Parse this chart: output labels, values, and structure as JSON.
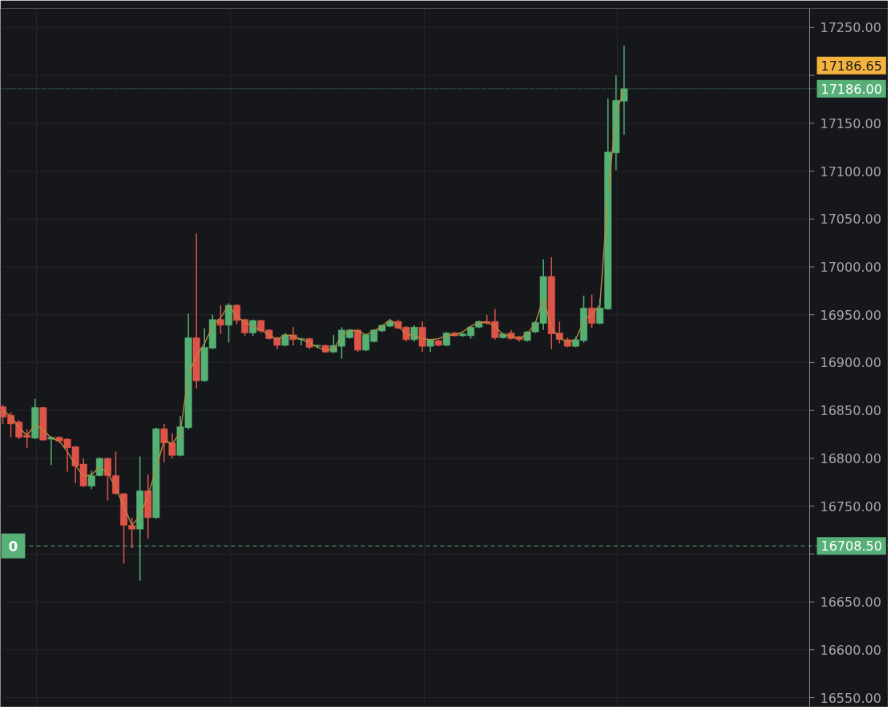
{
  "chart_data": {
    "type": "candlestick",
    "categories": [
      null,
      null,
      null,
      null,
      null,
      null,
      null,
      null,
      null,
      null,
      null,
      null,
      null,
      null,
      null,
      null,
      null,
      null,
      null,
      null,
      null,
      null,
      null,
      null,
      null,
      null,
      null,
      null,
      null,
      null,
      null,
      null,
      null,
      null,
      null,
      null,
      null,
      null,
      null,
      null,
      null,
      null,
      null,
      null,
      null,
      null,
      null,
      null,
      null,
      null,
      null,
      null,
      null,
      null,
      null,
      null,
      null,
      null,
      null,
      null,
      null,
      null,
      null,
      null,
      null,
      null,
      null,
      null,
      null,
      null,
      null,
      null,
      null,
      null,
      null,
      null,
      null,
      null
    ],
    "ohlc": [
      [
        16854,
        16856,
        16836,
        16843
      ],
      [
        16845,
        16848,
        16822,
        16836
      ],
      [
        16838,
        16840,
        16820,
        16822
      ],
      [
        16824,
        16830,
        16811,
        16822
      ],
      [
        16821,
        16862,
        16820,
        16853
      ],
      [
        16853,
        16854,
        16819,
        16819
      ],
      [
        16820,
        16823,
        16793,
        16822
      ],
      [
        16822,
        16823,
        16816,
        16818
      ],
      [
        16820,
        16821,
        16786,
        16811
      ],
      [
        16812,
        16813,
        16774,
        16792
      ],
      [
        16794,
        16800,
        16770,
        16771
      ],
      [
        16771,
        16787,
        16768,
        16782
      ],
      [
        16782,
        16801,
        16781,
        16800
      ],
      [
        16800,
        16801,
        16756,
        16782
      ],
      [
        16782,
        16807,
        16762,
        16763
      ],
      [
        16763,
        16764,
        16690,
        16730
      ],
      [
        16730,
        16738,
        16706,
        16726
      ],
      [
        16726,
        16802,
        16672,
        16766
      ],
      [
        16766,
        16783,
        16716,
        16738
      ],
      [
        16738,
        16832,
        16737,
        16831
      ],
      [
        16831,
        16836,
        16796,
        16816
      ],
      [
        16816,
        16826,
        16800,
        16803
      ],
      [
        16803,
        16844,
        16802,
        16833
      ],
      [
        16832,
        16951,
        16830,
        16926
      ],
      [
        16926,
        17035,
        16873,
        16881
      ],
      [
        16881,
        16936,
        16880,
        16916
      ],
      [
        16915,
        16950,
        16914,
        16945
      ],
      [
        16945,
        16960,
        16930,
        16939
      ],
      [
        16939,
        16962,
        16921,
        16960
      ],
      [
        16960,
        16961,
        16940,
        16944
      ],
      [
        16945,
        16946,
        16928,
        16931
      ],
      [
        16931,
        16945,
        16928,
        16944
      ],
      [
        16944,
        16945,
        16931,
        16933
      ],
      [
        16934,
        16935,
        16924,
        16925
      ],
      [
        16926,
        16927,
        16914,
        16918
      ],
      [
        16918,
        16931,
        16917,
        16929
      ],
      [
        16929,
        16937,
        16918,
        16924
      ],
      [
        16924,
        16926,
        16918,
        16925
      ],
      [
        16925,
        16926,
        16914,
        16916
      ],
      [
        16917,
        16919,
        16915,
        16918
      ],
      [
        16918,
        16919,
        16910,
        16911
      ],
      [
        16911,
        16929,
        16910,
        16918
      ],
      [
        16917,
        16937,
        16904,
        16934
      ],
      [
        16926,
        16935,
        16925,
        16934
      ],
      [
        16934,
        16935,
        16911,
        16913
      ],
      [
        16913,
        16930,
        16912,
        16929
      ],
      [
        16922,
        16935,
        16921,
        16934
      ],
      [
        16933,
        16940,
        16932,
        16939
      ],
      [
        16938,
        16944,
        16937,
        16943
      ],
      [
        16943,
        16945,
        16935,
        16936
      ],
      [
        16937,
        16938,
        16922,
        16924
      ],
      [
        16924,
        16939,
        16922,
        16937
      ],
      [
        16937,
        16943,
        16911,
        16917
      ],
      [
        16917,
        16924,
        16911,
        16924
      ],
      [
        16923,
        16924,
        16917,
        16918
      ],
      [
        16918,
        16932,
        16917,
        16931
      ],
      [
        16931,
        16932,
        16927,
        16928
      ],
      [
        16928,
        16931,
        16927,
        16930
      ],
      [
        16928,
        16938,
        16925,
        16937
      ],
      [
        16937,
        16944,
        16936,
        16943
      ],
      [
        16943,
        16950,
        16940,
        16941
      ],
      [
        16943,
        16956,
        16924,
        16926
      ],
      [
        16926,
        16931,
        16925,
        16930
      ],
      [
        16931,
        16934,
        16924,
        16925
      ],
      [
        16927,
        16928,
        16922,
        16924
      ],
      [
        16923,
        16933,
        16922,
        16932
      ],
      [
        16932,
        16943,
        16931,
        16942
      ],
      [
        16941,
        17008,
        16934,
        16990
      ],
      [
        16990,
        17010,
        16914,
        16930
      ],
      [
        16931,
        16943,
        16920,
        16924
      ],
      [
        16924,
        16926,
        16916,
        16917
      ],
      [
        16917,
        16927,
        16916,
        16924
      ],
      [
        16923,
        16970,
        16921,
        16957
      ],
      [
        16957,
        16971,
        16936,
        16941
      ],
      [
        16941,
        16967,
        16940,
        16957
      ],
      [
        16956,
        17176,
        16955,
        17120
      ],
      [
        17119,
        17200,
        17101,
        17174
      ],
      [
        17173,
        17231,
        17138,
        17186
      ]
    ],
    "colors": [
      "#df5448",
      "#df5448",
      "#df5448",
      "#df5448",
      "#55b073",
      "#df5448",
      "#55b073",
      "#df5448",
      "#df5448",
      "#df5448",
      "#df5448",
      "#55b073",
      "#55b073",
      "#df5448",
      "#df5448",
      "#df5448",
      "#df5448",
      "#55b073",
      "#df5448",
      "#55b073",
      "#df5448",
      "#df5448",
      "#55b073",
      "#55b073",
      "#df5448",
      "#55b073",
      "#55b073",
      "#df5448",
      "#55b073",
      "#df5448",
      "#df5448",
      "#55b073",
      "#df5448",
      "#df5448",
      "#df5448",
      "#55b073",
      "#df5448",
      "#55b073",
      "#df5448",
      "#55b073",
      "#df5448",
      "#55b073",
      "#55b073",
      "#55b073",
      "#df5448",
      "#55b073",
      "#55b073",
      "#55b073",
      "#55b073",
      "#df5448",
      "#df5448",
      "#55b073",
      "#df5448",
      "#55b073",
      "#df5448",
      "#55b073",
      "#df5448",
      "#55b073",
      "#55b073",
      "#55b073",
      "#df5448",
      "#df5448",
      "#55b073",
      "#df5448",
      "#df5448",
      "#55b073",
      "#55b073",
      "#55b073",
      "#df5448",
      "#df5448",
      "#df5448",
      "#55b073",
      "#55b073",
      "#df5448",
      "#55b073",
      "#55b073",
      "#55b073",
      "#55b073"
    ],
    "series": [
      {
        "type": "line",
        "color": "#b98a3e",
        "values": [
          16850,
          16844,
          16832,
          16824,
          16835,
          16830,
          16821,
          16818,
          16807,
          16793,
          16781,
          16783,
          16791,
          16785,
          16769,
          16750,
          16730,
          16740,
          16761,
          16789,
          16819,
          16815,
          16827,
          16887,
          16907,
          16920,
          16938,
          16947,
          16960,
          16948,
          16942,
          16938,
          16934,
          16929,
          16924,
          16929,
          16928,
          16924,
          16921,
          16916,
          16913,
          16914,
          16928,
          16934,
          16933,
          16929,
          16933,
          16938,
          16945,
          16938,
          16930,
          16928,
          16925,
          16924,
          16925,
          16928,
          16929,
          16932,
          16938,
          16942,
          16942,
          16938,
          16929,
          16928,
          16925,
          16930,
          16941,
          16968,
          16936,
          16926,
          16921,
          16924,
          16944,
          16951,
          16960,
          17075,
          17160,
          17186
        ]
      }
    ],
    "ylim": [
      16540,
      17270
    ],
    "yticks": [
      {
        "value": 16550,
        "label": "16550.00"
      },
      {
        "value": 16600,
        "label": "16600.00"
      },
      {
        "value": 16650,
        "label": "16650.00"
      },
      {
        "value": 16700,
        "label": null
      },
      {
        "value": 16750,
        "label": "16750.00"
      },
      {
        "value": 16800,
        "label": "16800.00"
      },
      {
        "value": 16850,
        "label": "16850.00"
      },
      {
        "value": 16900,
        "label": "16900.00"
      },
      {
        "value": 16950,
        "label": "16950.00"
      },
      {
        "value": 17000,
        "label": "17000.00"
      },
      {
        "value": 17050,
        "label": "17050.00"
      },
      {
        "value": 17100,
        "label": "17100.00"
      },
      {
        "value": 17150,
        "label": "17150.00"
      },
      {
        "value": 17200,
        "label": null
      },
      {
        "value": 17250,
        "label": "17250.00"
      }
    ],
    "grid": true,
    "tick_labels": "y",
    "ref_lines": [
      {
        "axis": "y",
        "value": 17186.0,
        "label": "17186.00",
        "color": "#56b077",
        "line_style": "dotted"
      },
      {
        "axis": "y",
        "value": 16708.5,
        "label": "16708.50",
        "color": "#56b077",
        "line_style": "dashed"
      }
    ],
    "annotations": [
      {
        "text": "17186.65",
        "y": 17186.65
      },
      {
        "text": "0",
        "y": 16708.5
      }
    ]
  }
}
